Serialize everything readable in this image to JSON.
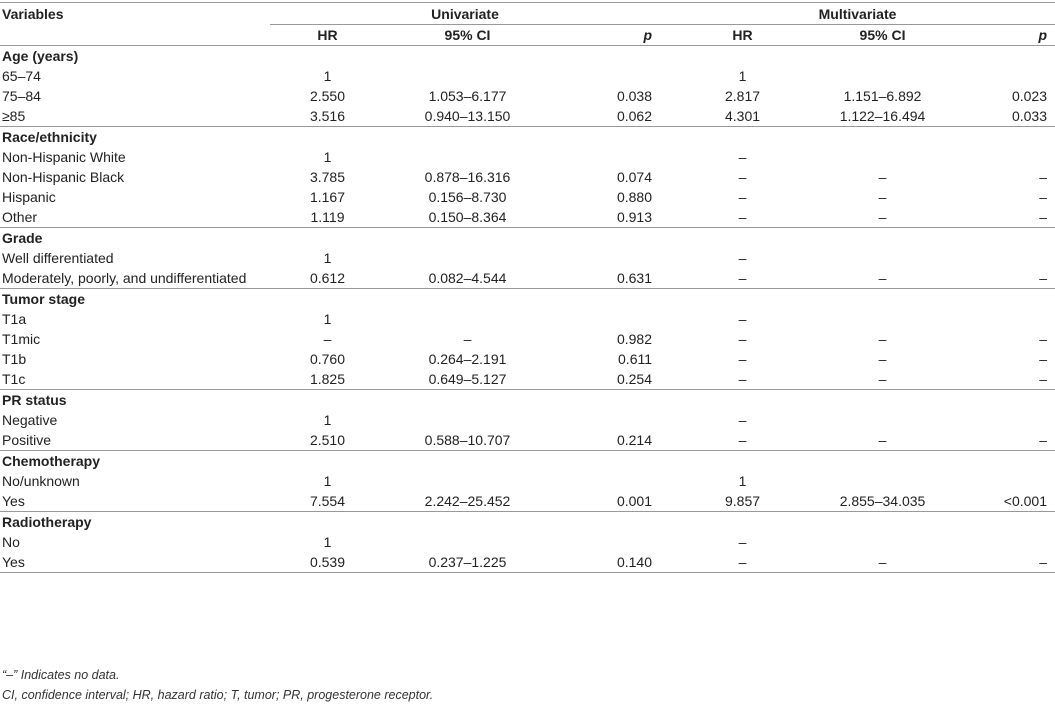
{
  "header": {
    "variables": "Variables",
    "univariate": "Univariate",
    "multivariate": "Multivariate",
    "hr": "HR",
    "ci": "95% CI",
    "p": "p"
  },
  "sections": [
    {
      "title": "Age (years)",
      "rows": [
        {
          "label": "65–74",
          "u_hr": "1",
          "u_ci": "",
          "u_p": "",
          "m_hr": "1",
          "m_ci": "",
          "m_p": ""
        },
        {
          "label": "75–84",
          "u_hr": "2.550",
          "u_ci": "1.053–6.177",
          "u_p": "0.038",
          "m_hr": "2.817",
          "m_ci": "1.151–6.892",
          "m_p": "0.023"
        },
        {
          "label": "≥85",
          "u_hr": "3.516",
          "u_ci": "0.940–13.150",
          "u_p": "0.062",
          "m_hr": "4.301",
          "m_ci": "1.122–16.494",
          "m_p": "0.033"
        }
      ]
    },
    {
      "title": "Race/ethnicity",
      "rows": [
        {
          "label": "Non-Hispanic White",
          "u_hr": "1",
          "u_ci": "",
          "u_p": "",
          "m_hr": "–",
          "m_ci": "",
          "m_p": ""
        },
        {
          "label": "Non-Hispanic Black",
          "u_hr": "3.785",
          "u_ci": "0.878–16.316",
          "u_p": "0.074",
          "m_hr": "–",
          "m_ci": "–",
          "m_p": "–"
        },
        {
          "label": "Hispanic",
          "u_hr": "1.167",
          "u_ci": "0.156–8.730",
          "u_p": "0.880",
          "m_hr": "–",
          "m_ci": "–",
          "m_p": "–"
        },
        {
          "label": "Other",
          "u_hr": "1.119",
          "u_ci": "0.150–8.364",
          "u_p": "0.913",
          "m_hr": "–",
          "m_ci": "–",
          "m_p": "–"
        }
      ]
    },
    {
      "title": "Grade",
      "rows": [
        {
          "label": "Well differentiated",
          "u_hr": "1",
          "u_ci": "",
          "u_p": "",
          "m_hr": "–",
          "m_ci": "",
          "m_p": ""
        },
        {
          "label": "Moderately, poorly, and undifferentiated",
          "u_hr": "0.612",
          "u_ci": "0.082–4.544",
          "u_p": "0.631",
          "m_hr": "–",
          "m_ci": "–",
          "m_p": "–"
        }
      ]
    },
    {
      "title": "Tumor stage",
      "rows": [
        {
          "label": "T1a",
          "u_hr": "1",
          "u_ci": "",
          "u_p": "",
          "m_hr": "–",
          "m_ci": "",
          "m_p": ""
        },
        {
          "label": "T1mic",
          "u_hr": "–",
          "u_ci": "–",
          "u_p": "0.982",
          "m_hr": "–",
          "m_ci": "–",
          "m_p": "–"
        },
        {
          "label": "T1b",
          "u_hr": "0.760",
          "u_ci": "0.264–2.191",
          "u_p": "0.611",
          "m_hr": "–",
          "m_ci": "–",
          "m_p": "–"
        },
        {
          "label": "T1c",
          "u_hr": "1.825",
          "u_ci": "0.649–5.127",
          "u_p": "0.254",
          "m_hr": "–",
          "m_ci": "–",
          "m_p": "–"
        }
      ]
    },
    {
      "title": "PR status",
      "rows": [
        {
          "label": "Negative",
          "u_hr": "1",
          "u_ci": "",
          "u_p": "",
          "m_hr": "–",
          "m_ci": "",
          "m_p": ""
        },
        {
          "label": "Positive",
          "u_hr": "2.510",
          "u_ci": "0.588–10.707",
          "u_p": "0.214",
          "m_hr": "–",
          "m_ci": "–",
          "m_p": "–"
        }
      ]
    },
    {
      "title": "Chemotherapy",
      "rows": [
        {
          "label": "No/unknown",
          "u_hr": "1",
          "u_ci": "",
          "u_p": "",
          "m_hr": "1",
          "m_ci": "",
          "m_p": ""
        },
        {
          "label": "Yes",
          "u_hr": "7.554",
          "u_ci": "2.242–25.452",
          "u_p": "0.001",
          "m_hr": "9.857",
          "m_ci": "2.855–34.035",
          "m_p": "<0.001"
        }
      ]
    },
    {
      "title": "Radiotherapy",
      "rows": [
        {
          "label": "No",
          "u_hr": "1",
          "u_ci": "",
          "u_p": "",
          "m_hr": "–",
          "m_ci": "",
          "m_p": ""
        },
        {
          "label": "Yes",
          "u_hr": "0.539",
          "u_ci": "0.237–1.225",
          "u_p": "0.140",
          "m_hr": "–",
          "m_ci": "–",
          "m_p": "–"
        }
      ]
    }
  ],
  "footnotes": [
    "“–” Indicates no data.",
    "CI, confidence interval; HR, hazard ratio; T, tumor; PR, progesterone receptor."
  ]
}
